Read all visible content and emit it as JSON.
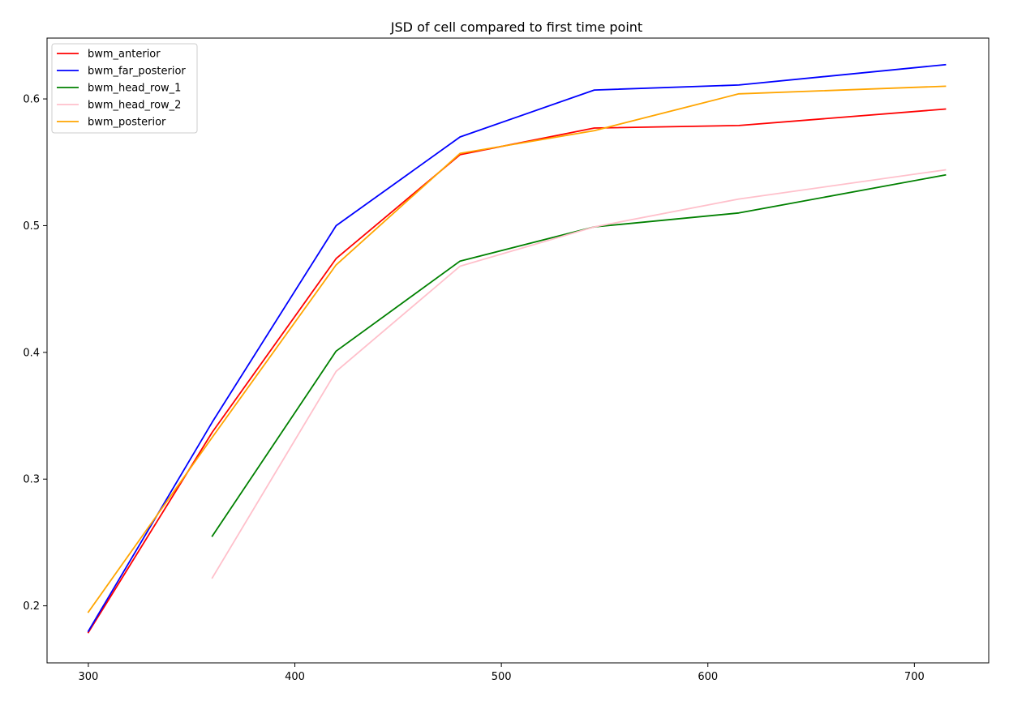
{
  "chart_data": {
    "type": "line",
    "title": "JSD of cell compared to first time point",
    "xlabel": "",
    "ylabel": "",
    "xlim": [
      280,
      736
    ],
    "ylim": [
      0.155,
      0.648
    ],
    "xticks": [
      300,
      400,
      500,
      600,
      700
    ],
    "yticks": [
      0.2,
      0.3,
      0.4,
      0.5,
      0.6
    ],
    "grid": false,
    "legend_position": "top-left",
    "series": [
      {
        "name": "bwm_anterior",
        "color": "#ff0000",
        "points": [
          [
            300,
            0.179
          ],
          [
            360,
            0.337
          ],
          [
            420,
            0.474
          ],
          [
            480,
            0.556
          ],
          [
            545,
            0.577
          ],
          [
            615,
            0.579
          ],
          [
            715,
            0.592
          ]
        ]
      },
      {
        "name": "bwm_far_posterior",
        "color": "#0000ff",
        "points": [
          [
            300,
            0.18
          ],
          [
            360,
            0.345
          ],
          [
            420,
            0.5
          ],
          [
            480,
            0.57
          ],
          [
            545,
            0.607
          ],
          [
            615,
            0.611
          ],
          [
            715,
            0.627
          ]
        ]
      },
      {
        "name": "bwm_head_row_1",
        "color": "#008000",
        "points": [
          [
            360,
            0.255
          ],
          [
            420,
            0.401
          ],
          [
            480,
            0.472
          ],
          [
            545,
            0.499
          ],
          [
            615,
            0.51
          ],
          [
            715,
            0.54
          ]
        ]
      },
      {
        "name": "bwm_head_row_2",
        "color": "#ffc0cb",
        "points": [
          [
            360,
            0.222
          ],
          [
            420,
            0.385
          ],
          [
            480,
            0.468
          ],
          [
            545,
            0.499
          ],
          [
            615,
            0.521
          ],
          [
            715,
            0.544
          ]
        ]
      },
      {
        "name": "bwm_posterior",
        "color": "#ffa500",
        "points": [
          [
            300,
            0.195
          ],
          [
            360,
            0.333
          ],
          [
            420,
            0.469
          ],
          [
            480,
            0.557
          ],
          [
            545,
            0.575
          ],
          [
            615,
            0.604
          ],
          [
            715,
            0.61
          ]
        ]
      }
    ]
  }
}
